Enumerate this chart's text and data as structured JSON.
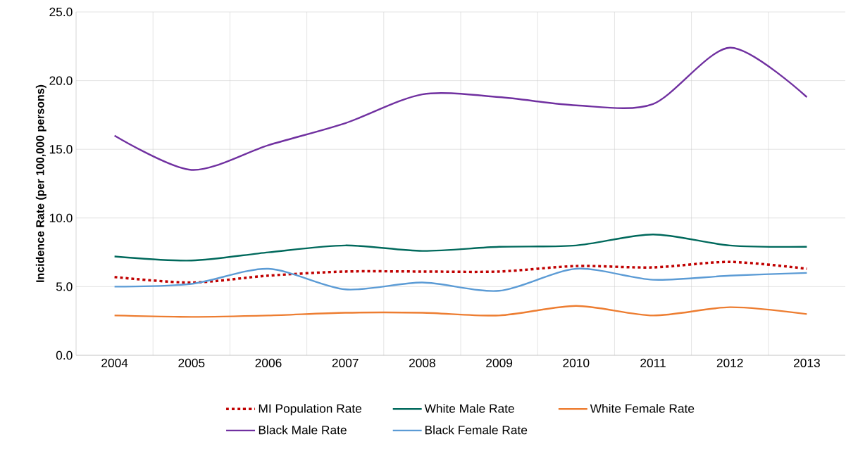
{
  "chart_data": {
    "type": "line",
    "ylabel": "Incidence Rate (per 100,000 persons)",
    "categories": [
      "2004",
      "2005",
      "2006",
      "2007",
      "2008",
      "2009",
      "2010",
      "2011",
      "2012",
      "2013"
    ],
    "series": [
      {
        "name": "MI Population Rate",
        "color": "#c00000",
        "line_style": "dashed",
        "values": [
          5.7,
          5.3,
          5.8,
          6.1,
          6.1,
          6.1,
          6.5,
          6.4,
          6.8,
          6.3
        ]
      },
      {
        "name": "White Male Rate",
        "color": "#00695c",
        "values": [
          7.2,
          6.9,
          7.5,
          8.0,
          7.6,
          7.9,
          8.0,
          8.8,
          8.0,
          7.9
        ]
      },
      {
        "name": "White Female Rate",
        "color": "#ed7d31",
        "values": [
          2.9,
          2.8,
          2.9,
          3.1,
          3.1,
          2.9,
          3.6,
          2.9,
          3.5,
          3.0
        ]
      },
      {
        "name": "Black Male Rate",
        "color": "#7030a0",
        "values": [
          16.0,
          13.5,
          15.3,
          16.9,
          19.0,
          18.8,
          18.2,
          18.3,
          22.4,
          18.8
        ]
      },
      {
        "name": "Black Female Rate",
        "color": "#5b9bd5",
        "values": [
          5.0,
          5.2,
          6.3,
          4.8,
          5.3,
          4.7,
          6.3,
          5.5,
          5.8,
          6.0
        ]
      }
    ],
    "ylim": [
      0,
      25
    ],
    "yticks": [
      {
        "value": 0,
        "label": "0.0"
      },
      {
        "value": 5,
        "label": "5.0"
      },
      {
        "value": 10,
        "label": "10.0"
      },
      {
        "value": 15,
        "label": "15.0"
      },
      {
        "value": 20,
        "label": "20.0"
      },
      {
        "value": 25,
        "label": "25.0"
      }
    ],
    "grid": true,
    "legend": "bottom",
    "marker": "none",
    "line_style": "solid"
  }
}
